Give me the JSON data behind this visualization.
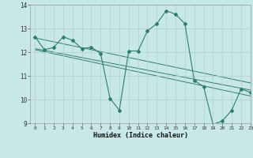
{
  "xlabel": "Humidex (Indice chaleur)",
  "xlim": [
    -0.5,
    23
  ],
  "ylim": [
    9,
    14
  ],
  "yticks": [
    9,
    10,
    11,
    12,
    13,
    14
  ],
  "xticks": [
    0,
    1,
    2,
    3,
    4,
    5,
    6,
    7,
    8,
    9,
    10,
    11,
    12,
    13,
    14,
    15,
    16,
    17,
    18,
    19,
    20,
    21,
    22,
    23
  ],
  "bg_color": "#c8e8e8",
  "line_color": "#2e7d6e",
  "grid_color": "#b0d0d0",
  "main_x": [
    0,
    1,
    2,
    3,
    4,
    5,
    6,
    7,
    8,
    9,
    10,
    11,
    12,
    13,
    14,
    15,
    16,
    17,
    18,
    19,
    20,
    21,
    22,
    23
  ],
  "main_y": [
    12.65,
    12.1,
    12.2,
    12.65,
    12.5,
    12.15,
    12.2,
    11.95,
    10.05,
    9.55,
    12.05,
    12.05,
    12.9,
    13.2,
    13.75,
    13.6,
    13.2,
    10.8,
    10.55,
    8.95,
    9.1,
    9.55,
    10.45,
    10.3
  ],
  "trend1_x": [
    0,
    23
  ],
  "trend1_y": [
    12.6,
    10.7
  ],
  "trend2_x": [
    0,
    23
  ],
  "trend2_y": [
    12.15,
    10.4
  ],
  "trend3_x": [
    0,
    23
  ],
  "trend3_y": [
    12.1,
    10.15
  ]
}
